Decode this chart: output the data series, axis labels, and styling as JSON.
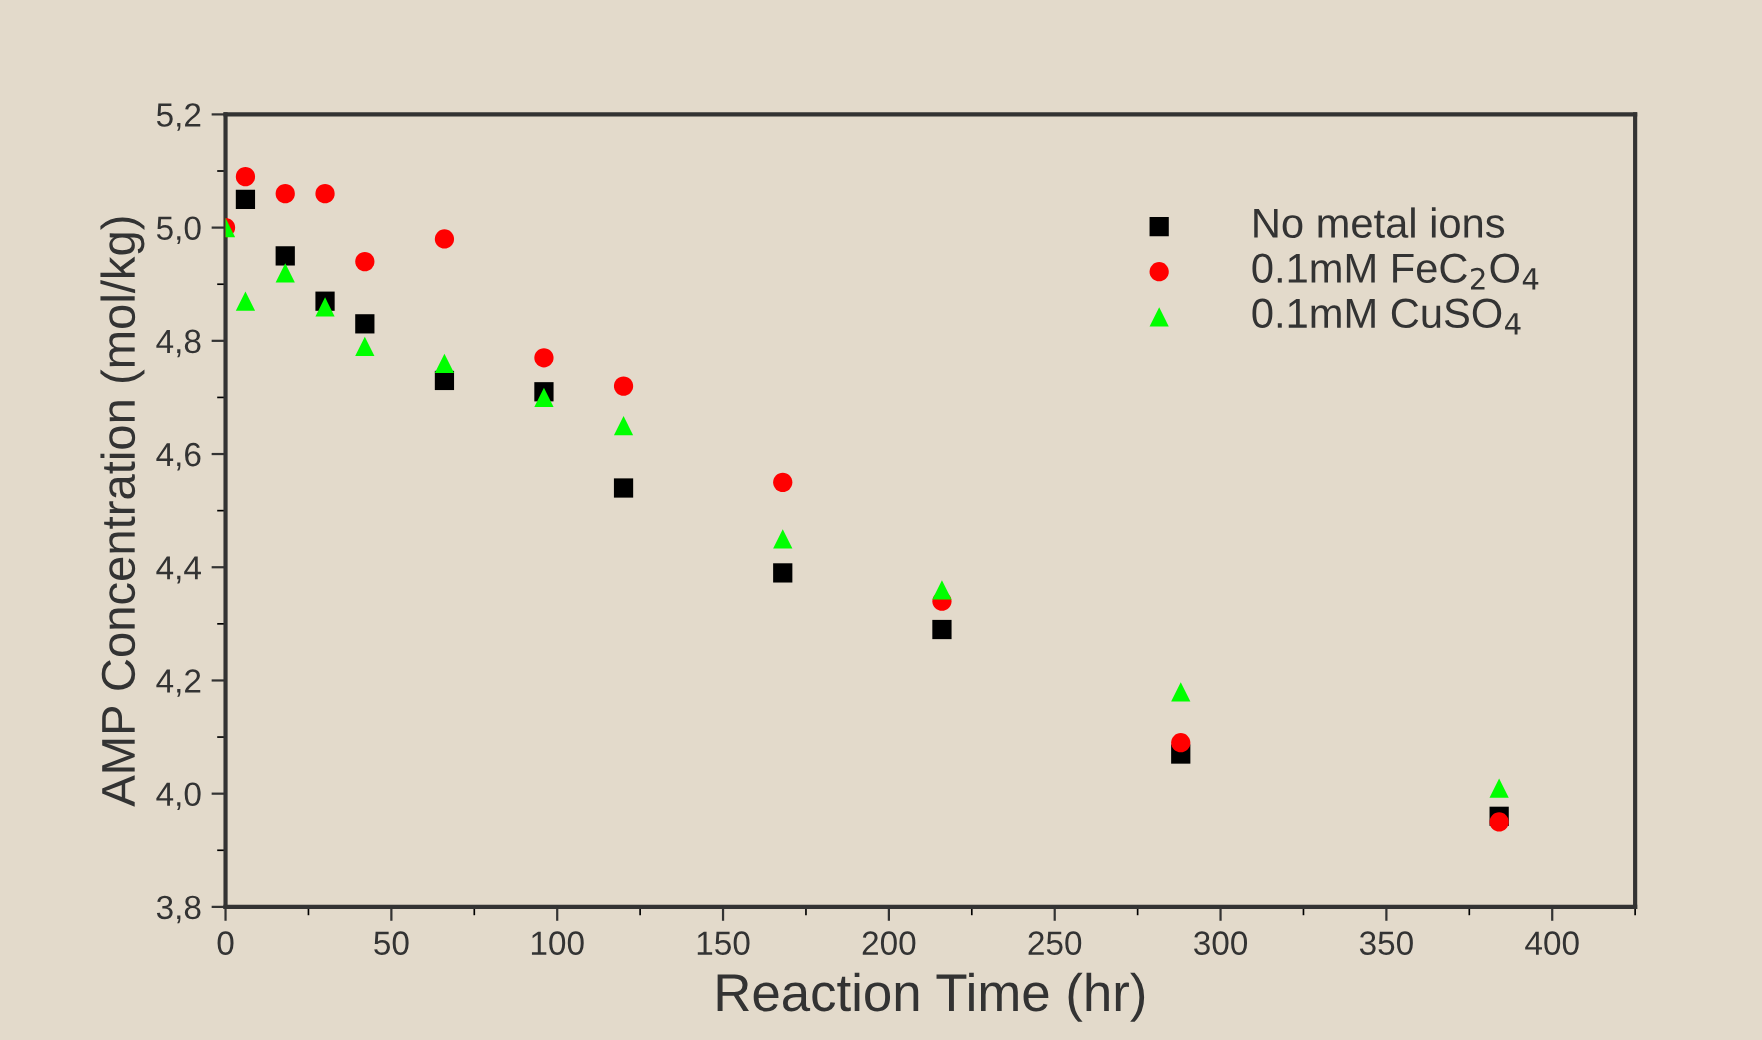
{
  "chart_data": {
    "type": "scatter",
    "xlabel": "Reaction Time (hr)",
    "ylabel": "AMP Concentration (mol/kg)",
    "xlim": [
      0,
      425
    ],
    "xticks": [
      0,
      50,
      100,
      150,
      200,
      250,
      300,
      350,
      400
    ],
    "ylim": [
      3.8,
      5.2
    ],
    "yticks": [
      {
        "value": 3.8,
        "label": "3,8"
      },
      {
        "value": 4.0,
        "label": "4,0"
      },
      {
        "value": 4.2,
        "label": "4,2"
      },
      {
        "value": 4.4,
        "label": "4,4"
      },
      {
        "value": 4.6,
        "label": "4,6"
      },
      {
        "value": 4.8,
        "label": "4,8"
      },
      {
        "value": 5.0,
        "label": "5,0"
      },
      {
        "value": 5.2,
        "label": "5,2"
      }
    ],
    "grid": false,
    "legend": "top right",
    "x": [
      0,
      6,
      18,
      30,
      42,
      66,
      96,
      120,
      168,
      216,
      288,
      384
    ],
    "series": [
      {
        "name": "No metal ions",
        "color": "#000000",
        "marker": "square",
        "values": [
          null,
          5.05,
          4.95,
          4.87,
          4.83,
          4.73,
          4.71,
          4.54,
          4.39,
          4.29,
          4.07,
          3.96
        ]
      },
      {
        "name": "0.1mM FeC$_{2}$O$_{4}$",
        "color": "#ff0000",
        "marker": "circle",
        "values": [
          5.0,
          5.09,
          5.06,
          5.06,
          4.94,
          4.98,
          4.77,
          4.72,
          4.55,
          4.34,
          4.09,
          3.95
        ]
      },
      {
        "name": "0.1mM CuSO$_{4}$",
        "color": "#00ff00",
        "marker": "triangle",
        "values": [
          5.0,
          4.87,
          4.92,
          4.86,
          4.79,
          4.76,
          4.7,
          4.65,
          4.45,
          4.36,
          4.18,
          4.01
        ]
      }
    ]
  }
}
